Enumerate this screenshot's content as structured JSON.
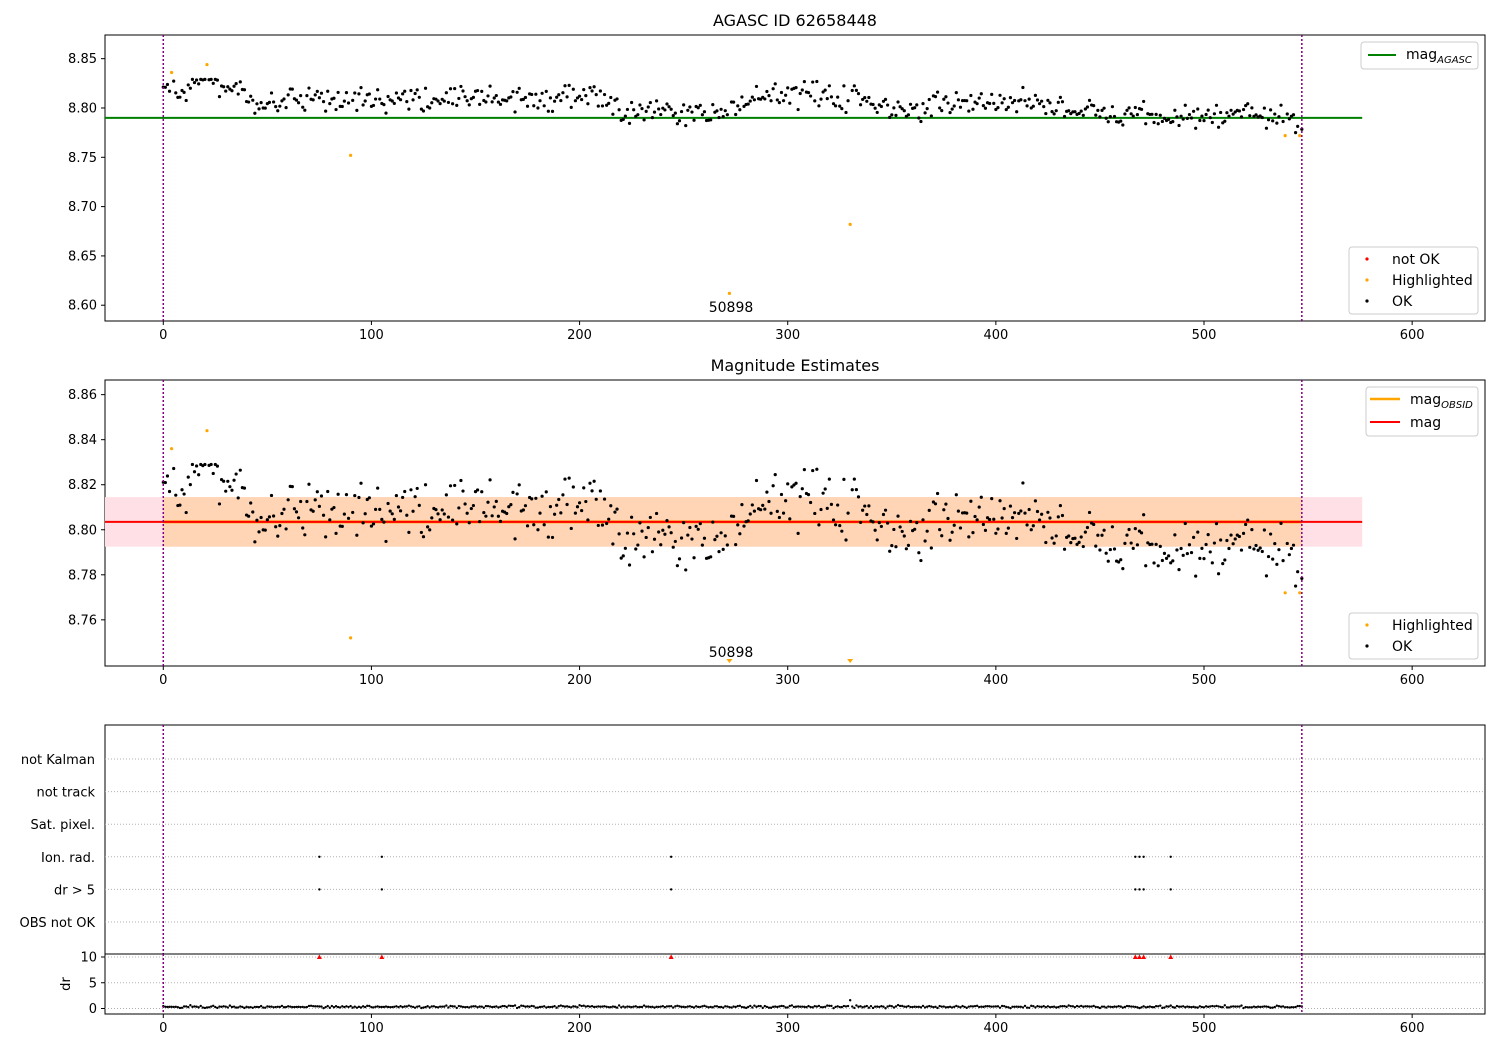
{
  "colors": {
    "ok": "#000000",
    "highlighted": "#ffa500",
    "not_ok": "#ff0000",
    "mag_agasc": "#008000",
    "mag_obsid": "#ffa500",
    "mag": "#ff0000",
    "band_inner": "#ffd5b5",
    "band_outer": "#ffe0e6",
    "boundary": "#800080",
    "grid": "#b0b0b0"
  },
  "chart_data": [
    {
      "id": "agasc",
      "type": "scatter",
      "title": "AGASC ID 62658448",
      "xlim": [
        -28,
        635
      ],
      "ylim": [
        8.584,
        8.874
      ],
      "xticks": [
        0,
        100,
        200,
        300,
        400,
        500,
        600
      ],
      "yticks": [
        "8.60",
        "8.65",
        "8.70",
        "8.75",
        "8.80",
        "8.85"
      ],
      "boundaries": [
        0,
        547
      ],
      "hline": {
        "name": "mag_AGASC",
        "y": 8.79,
        "x0": -28,
        "x1": 576
      },
      "annotation": {
        "text": "50898",
        "x": 272
      },
      "legend_lines": [
        {
          "label": "mag",
          "sub": "AGASC"
        }
      ],
      "legend_points": [
        {
          "label": "not OK",
          "color_key": "not_ok"
        },
        {
          "label": "Highlighted",
          "color_key": "highlighted"
        },
        {
          "label": "OK",
          "color_key": "ok"
        }
      ],
      "highlighted": [
        [
          4,
          8.836
        ],
        [
          21,
          8.844
        ],
        [
          90,
          8.752
        ],
        [
          272,
          8.612
        ],
        [
          330,
          8.682
        ],
        [
          539,
          8.772
        ],
        [
          546,
          8.772
        ]
      ],
      "trend": [
        [
          0,
          8.818
        ],
        [
          20,
          8.825
        ],
        [
          35,
          8.822
        ],
        [
          45,
          8.8
        ],
        [
          60,
          8.808
        ],
        [
          100,
          8.806
        ],
        [
          140,
          8.81
        ],
        [
          180,
          8.808
        ],
        [
          210,
          8.812
        ],
        [
          220,
          8.798
        ],
        [
          240,
          8.798
        ],
        [
          265,
          8.794
        ],
        [
          280,
          8.81
        ],
        [
          300,
          8.815
        ],
        [
          320,
          8.812
        ],
        [
          340,
          8.806
        ],
        [
          360,
          8.798
        ],
        [
          380,
          8.802
        ],
        [
          400,
          8.805
        ],
        [
          420,
          8.808
        ],
        [
          440,
          8.795
        ],
        [
          460,
          8.794
        ],
        [
          480,
          8.79
        ],
        [
          500,
          8.793
        ],
        [
          520,
          8.795
        ],
        [
          547,
          8.786
        ]
      ]
    },
    {
      "id": "mag_estimates",
      "type": "scatter",
      "title": "Magnitude Estimates",
      "xlim": [
        -28,
        635
      ],
      "ylim": [
        8.7395,
        8.8665
      ],
      "xticks": [
        0,
        100,
        200,
        300,
        400,
        500,
        600
      ],
      "yticks": [
        "8.76",
        "8.78",
        "8.80",
        "8.82",
        "8.84",
        "8.86"
      ],
      "boundaries": [
        0,
        547
      ],
      "mag_line": {
        "name": "mag",
        "y": 8.8035,
        "x0": -28,
        "x1": 576
      },
      "mag_obsid_line": {
        "name": "mag_OBSID",
        "y": 8.8035,
        "x0": 0,
        "x1": 547
      },
      "band_inner": {
        "y0": 8.7925,
        "y1": 8.8145,
        "x0": 0,
        "x1": 547
      },
      "band_outer": {
        "y0": 8.7925,
        "y1": 8.8145,
        "x0": -28,
        "x1": 576
      },
      "annotation": {
        "text": "50898",
        "x": 272
      },
      "legend_lines": [
        {
          "label": "mag",
          "sub": "OBSID",
          "color_key": "mag_obsid"
        },
        {
          "label": "mag",
          "sub": "",
          "color_key": "mag"
        }
      ],
      "legend_points": [
        {
          "label": "Highlighted",
          "color_key": "highlighted"
        },
        {
          "label": "OK",
          "color_key": "ok"
        }
      ],
      "highlighted": [
        [
          4,
          8.836
        ],
        [
          21,
          8.844
        ],
        [
          90,
          8.752
        ],
        [
          539,
          8.772
        ],
        [
          546,
          8.772
        ]
      ],
      "offscale_markers": [
        272,
        330
      ],
      "trend": [
        [
          0,
          8.818
        ],
        [
          20,
          8.825
        ],
        [
          35,
          8.822
        ],
        [
          45,
          8.8
        ],
        [
          60,
          8.808
        ],
        [
          100,
          8.806
        ],
        [
          140,
          8.81
        ],
        [
          180,
          8.808
        ],
        [
          210,
          8.812
        ],
        [
          220,
          8.798
        ],
        [
          240,
          8.798
        ],
        [
          265,
          8.794
        ],
        [
          280,
          8.81
        ],
        [
          300,
          8.815
        ],
        [
          320,
          8.812
        ],
        [
          340,
          8.806
        ],
        [
          360,
          8.798
        ],
        [
          380,
          8.802
        ],
        [
          400,
          8.805
        ],
        [
          420,
          8.808
        ],
        [
          440,
          8.795
        ],
        [
          460,
          8.794
        ],
        [
          480,
          8.79
        ],
        [
          500,
          8.793
        ],
        [
          520,
          8.795
        ],
        [
          547,
          8.786
        ]
      ]
    },
    {
      "id": "flags",
      "type": "scatter",
      "xlim": [
        -28,
        635
      ],
      "boundaries": [
        0,
        547
      ],
      "flag_rows": [
        "not Kalman",
        "not track",
        "Sat. pixel.",
        "Ion. rad.",
        "dr > 5",
        "OBS not OK"
      ],
      "flag_points": {
        "Ion. rad.": [
          75,
          105,
          244,
          467,
          469,
          471,
          484
        ],
        "dr > 5": [
          75,
          105,
          244,
          467,
          469,
          471,
          484
        ]
      }
    },
    {
      "id": "dr",
      "type": "scatter",
      "xlim": [
        -28,
        635
      ],
      "ylim": [
        -0.5,
        10.6
      ],
      "ylabel": "dr",
      "xticks": [
        0,
        100,
        200,
        300,
        400,
        500,
        600
      ],
      "yticks": [
        "0",
        "5",
        "10"
      ],
      "boundaries": [
        0,
        547
      ],
      "triangles_at_10": [
        75,
        105,
        244,
        467,
        469,
        471,
        484
      ],
      "outlier": [
        330,
        1.6
      ],
      "baseline": 0.35
    }
  ]
}
